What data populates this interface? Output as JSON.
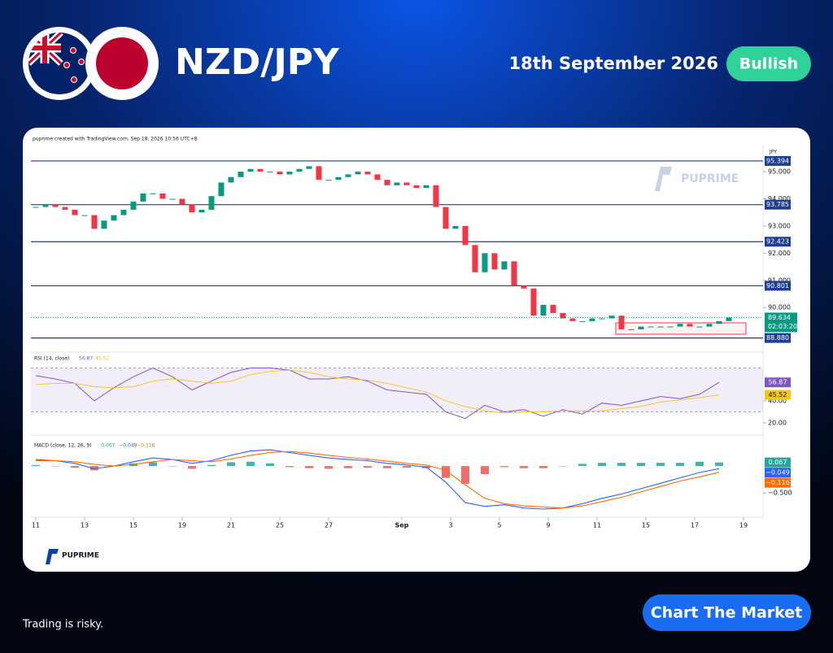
{
  "header": {
    "pair": "NZD/JPY",
    "date": "18th September 2026",
    "bias": "Bullish"
  },
  "chart_data": [
    {
      "type": "candlestick",
      "credit": "puprime created with TradingView.com, Sep 18, 2026 10:56 UTC+8",
      "currency": "JPY",
      "watermark": "PUPRIME",
      "values": [
        93.7,
        93.8,
        93.7,
        93.6,
        93.4,
        93.4,
        92.9,
        93.2,
        93.4,
        93.6,
        93.9,
        94.2,
        94.2,
        94.0,
        94.0,
        93.8,
        93.5,
        93.6,
        94.1,
        94.6,
        94.8,
        95.0,
        95.1,
        95.0,
        95.0,
        94.9,
        95.0,
        95.1,
        95.2,
        94.7,
        94.7,
        94.8,
        94.9,
        95.0,
        94.9,
        94.7,
        94.5,
        94.6,
        94.5,
        94.4,
        94.5,
        93.7,
        92.9,
        93.0,
        92.3,
        91.3,
        92.0,
        91.4,
        91.7,
        90.8,
        90.7,
        89.7,
        90.1,
        89.8,
        89.6,
        89.5,
        89.5,
        89.6,
        89.6,
        89.7,
        89.2,
        89.2,
        89.3,
        89.3,
        89.3,
        89.3,
        89.4,
        89.3,
        89.3,
        89.4,
        89.5,
        89.634
      ],
      "up_color": "#089981",
      "down_color": "#f23645",
      "ylim": [
        88.45,
        95.93
      ],
      "yticks": [
        {
          "value": 95,
          "label": "95.000"
        },
        {
          "value": 94,
          "label": "94.000"
        },
        {
          "value": 93,
          "label": "93.000"
        },
        {
          "value": 92,
          "label": "92.000"
        },
        {
          "value": 91,
          "label": "91.000"
        },
        {
          "value": 90,
          "label": "90.000"
        }
      ],
      "levels": [
        95.394,
        93.785,
        92.423,
        90.801,
        {
          "value": 88.88,
          "label": "88.880"
        }
      ],
      "level_color": "#1e3f8f",
      "countdown": "02:03:20",
      "xlim": [
        -0.33,
        74.17
      ],
      "xticks": [
        {
          "value": 0,
          "label": "11"
        },
        {
          "value": 5,
          "label": "13"
        },
        {
          "value": 10,
          "label": "15"
        },
        {
          "value": 15,
          "label": "19"
        },
        {
          "value": 20,
          "label": "21"
        },
        {
          "value": 25,
          "label": "25"
        },
        {
          "value": 30,
          "label": "27"
        },
        {
          "value": 37.5,
          "label": "Sep"
        },
        {
          "value": 42.5,
          "label": "3"
        },
        {
          "value": 47.5,
          "label": "5"
        },
        {
          "value": 52.5,
          "label": "9"
        },
        {
          "value": 57.5,
          "label": "11"
        },
        {
          "value": 62.5,
          "label": "15"
        },
        {
          "value": 67.5,
          "label": "17"
        },
        {
          "value": 72.5,
          "label": "19"
        }
      ]
    },
    {
      "type": "line",
      "legend": "RSI (14, close)",
      "ylim": [
        12.6,
        81.5
      ],
      "yticks": [
        {
          "value": 40,
          "label": "40.00"
        },
        {
          "value": 20,
          "label": "20.00"
        }
      ],
      "band": [
        30,
        70
      ],
      "series": [
        {
          "color": "#7e57c2",
          "values": [
            63,
            60,
            56,
            40,
            52,
            62,
            70,
            62,
            50,
            58,
            66,
            70,
            70,
            68,
            60,
            60,
            62,
            58,
            50,
            48,
            46,
            30,
            24,
            36,
            30,
            32,
            26,
            32,
            28,
            38,
            36,
            40,
            44,
            42,
            46,
            56.87
          ]
        },
        {
          "color": "#f5c518",
          "values": [
            55,
            56,
            56,
            53,
            52,
            53,
            58,
            60,
            58,
            56,
            58,
            64,
            67,
            68,
            66,
            62,
            60,
            59,
            56,
            52,
            48,
            40,
            35,
            31,
            29,
            30,
            30,
            31,
            31,
            31,
            33,
            35,
            39,
            41,
            43,
            45.52
          ]
        }
      ]
    },
    {
      "type": "line",
      "legend": "MACD (close, 12, 26, 9)",
      "ylim": [
        -0.86,
        0.5
      ],
      "yticks": [
        {
          "value": -0.5,
          "label": "−0.500"
        }
      ],
      "series": [
        {
          "type": "bar",
          "up_color": "#26a69a",
          "down_color": "#ef5350",
          "values": [
            0.02,
            0,
            -0.03,
            -0.08,
            0,
            0.05,
            0.07,
            0,
            -0.05,
            0.02,
            0.07,
            0.08,
            0.05,
            -0.02,
            -0.04,
            -0.05,
            -0.04,
            -0.03,
            -0.04,
            -0.03,
            -0.04,
            -0.22,
            -0.33,
            -0.15,
            -0.02,
            -0.04,
            -0.04,
            0,
            0.04,
            0.06,
            0.06,
            0.06,
            0.06,
            0.06,
            0.08,
            0.067
          ]
        },
        {
          "color": "#2962ff",
          "last_label": "−0.049",
          "values": [
            0.12,
            0.1,
            0.05,
            -0.05,
            0,
            0.08,
            0.15,
            0.12,
            0.05,
            0.1,
            0.2,
            0.28,
            0.3,
            0.25,
            0.2,
            0.15,
            0.12,
            0.1,
            0.05,
            0.02,
            -0.02,
            -0.3,
            -0.68,
            -0.75,
            -0.72,
            -0.78,
            -0.8,
            -0.78,
            -0.7,
            -0.6,
            -0.52,
            -0.42,
            -0.32,
            -0.22,
            -0.12,
            -0.049
          ]
        },
        {
          "color": "#ff6d00",
          "last_label": "−0.116",
          "values": [
            0.1,
            0.1,
            0.08,
            0.03,
            0,
            0.03,
            0.08,
            0.12,
            0.1,
            0.08,
            0.13,
            0.2,
            0.25,
            0.27,
            0.24,
            0.2,
            0.16,
            0.13,
            0.09,
            0.05,
            0.02,
            -0.08,
            -0.35,
            -0.6,
            -0.7,
            -0.74,
            -0.76,
            -0.78,
            -0.74,
            -0.66,
            -0.58,
            -0.48,
            -0.38,
            -0.28,
            -0.2,
            -0.116
          ]
        }
      ]
    }
  ],
  "footer": {
    "logo": "PUPRIME",
    "disclaimer": "Trading is risky.",
    "cta": "Chart The Market"
  }
}
